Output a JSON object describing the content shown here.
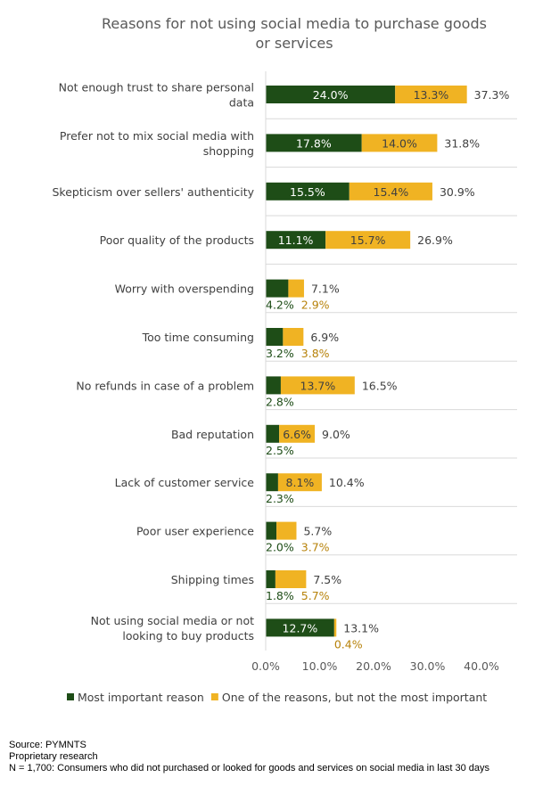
{
  "chart_data": {
    "type": "bar",
    "stacked": true,
    "orientation": "horizontal",
    "title": "Reasons for not using social media to purchase goods or services",
    "title_lines": [
      "Reasons for not using social media to purchase goods",
      "or services"
    ],
    "categories": [
      [
        "Not enough trust to share personal",
        "data"
      ],
      [
        "Prefer not to mix social media with",
        "shopping"
      ],
      [
        "Skepticism over sellers' authenticity"
      ],
      [
        "Poor quality of the products"
      ],
      [
        "Worry with overspending"
      ],
      [
        "Too time consuming"
      ],
      [
        "No refunds in case of a problem"
      ],
      [
        "Bad reputation"
      ],
      [
        "Lack of customer service"
      ],
      [
        "Poor user experience"
      ],
      [
        "Shipping times"
      ],
      [
        "Not using social media or not",
        "looking to buy products"
      ]
    ],
    "series": [
      {
        "name": "Most important reason",
        "color": "#1e4d17",
        "values": [
          24.0,
          17.8,
          15.5,
          11.1,
          4.2,
          3.2,
          2.8,
          2.5,
          2.3,
          2.0,
          1.8,
          12.7
        ]
      },
      {
        "name": "One of the reasons, but not the most important",
        "color": "#f0b323",
        "values": [
          13.3,
          14.0,
          15.4,
          15.7,
          2.9,
          3.8,
          13.7,
          6.6,
          8.1,
          3.7,
          5.7,
          0.4
        ]
      }
    ],
    "totals": [
      37.3,
      31.8,
      30.9,
      26.9,
      7.1,
      6.9,
      16.5,
      9.0,
      10.4,
      5.7,
      7.5,
      13.1
    ],
    "xlim": [
      0,
      40
    ],
    "xticks": [
      "0.0%",
      "10.0%",
      "20.0%",
      "30.0%",
      "40.0%"
    ],
    "legend": "bottom"
  },
  "source": [
    "Source: PYMNTS",
    "Proprietary research",
    "N = 1,700: Consumers who did not purchased or looked for goods and services on social media in last 30 days"
  ]
}
